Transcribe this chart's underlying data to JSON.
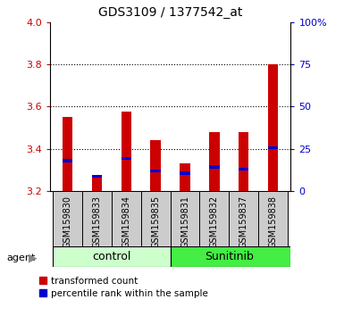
{
  "title": "GDS3109 / 1377542_at",
  "samples": [
    "GSM159830",
    "GSM159833",
    "GSM159834",
    "GSM159835",
    "GSM159831",
    "GSM159832",
    "GSM159837",
    "GSM159838"
  ],
  "red_values": [
    3.55,
    3.265,
    3.575,
    3.44,
    3.33,
    3.48,
    3.48,
    3.8
  ],
  "blue_values": [
    3.345,
    3.27,
    3.355,
    3.295,
    3.285,
    3.315,
    3.305,
    3.405
  ],
  "ymin": 3.2,
  "ymax": 4.0,
  "yticks": [
    3.2,
    3.4,
    3.6,
    3.8,
    4.0
  ],
  "y2ticks": [
    0,
    25,
    50,
    75,
    100
  ],
  "y2labels": [
    "0",
    "25",
    "50",
    "75",
    "100%"
  ],
  "bar_width": 0.35,
  "red_color": "#cc0000",
  "blue_color": "#0000cc",
  "bar_bottom": 3.2,
  "agent_label": "agent",
  "legend_red": "transformed count",
  "legend_blue": "percentile rank within the sample",
  "ylabel_color": "#cc0000",
  "ylabel2_color": "#0000cc",
  "sample_bg_color": "#cccccc",
  "control_bg_color": "#ccffcc",
  "sunitinib_bg_color": "#44ee44",
  "fig_width": 3.85,
  "fig_height": 3.54,
  "dpi": 100
}
